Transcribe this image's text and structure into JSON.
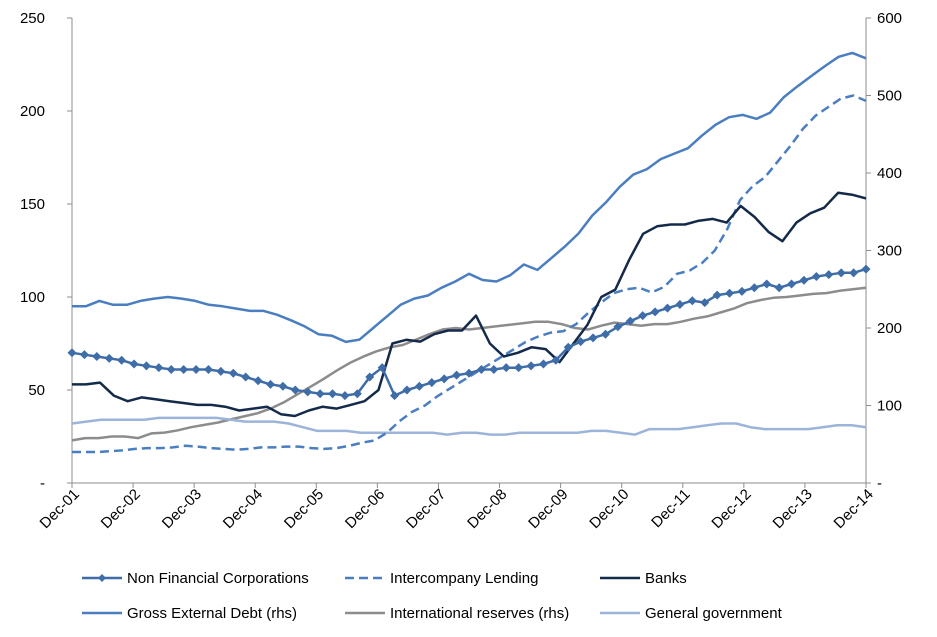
{
  "chart_data": {
    "type": "line",
    "x_labels": [
      "Dec-01",
      "Dec-02",
      "Dec-03",
      "Dec-04",
      "Dec-05",
      "Dec-06",
      "Dec-07",
      "Dec-08",
      "Dec-09",
      "Dec-10",
      "Dec-11",
      "Dec-12",
      "Dec-13",
      "Dec-14"
    ],
    "y_left": {
      "ylim": [
        0,
        250
      ],
      "ticks": [
        0,
        50,
        100,
        150,
        200,
        250
      ],
      "tick_labels": [
        "-",
        "50",
        "100",
        "150",
        "200",
        "250"
      ]
    },
    "y_right": {
      "ylim": [
        0,
        600
      ],
      "ticks": [
        0,
        100,
        200,
        300,
        400,
        500,
        600
      ],
      "tick_labels": [
        "-",
        "100",
        "200",
        "300",
        "400",
        "500",
        "600"
      ]
    },
    "grid": false,
    "legend_position": "bottom",
    "series": [
      {
        "name": "Non Financial Corporations",
        "axis": "left",
        "color": "#3f6da8",
        "style": "solid-diamond",
        "values": [
          70,
          69,
          68,
          67,
          66,
          64,
          63,
          62,
          61,
          61,
          61,
          61,
          60,
          59,
          57,
          55,
          53,
          52,
          50,
          49,
          48,
          48,
          47,
          48,
          57,
          62,
          47,
          50,
          52,
          54,
          56,
          58,
          59,
          61,
          61,
          62,
          62,
          63,
          64,
          66,
          73,
          76,
          78,
          80,
          84,
          87,
          90,
          92,
          94,
          96,
          98,
          97,
          101,
          102,
          103,
          105,
          107,
          105,
          107,
          109,
          111,
          112,
          113,
          113,
          115
        ]
      },
      {
        "name": "Intercompany Lending",
        "axis": "right",
        "color": "#4a7ec0",
        "style": "dashed",
        "values": [
          40,
          40,
          40,
          41,
          42,
          44,
          45,
          45,
          46,
          48,
          47,
          45,
          44,
          43,
          44,
          46,
          46,
          47,
          47,
          45,
          44,
          45,
          48,
          52,
          55,
          65,
          80,
          92,
          100,
          112,
          122,
          132,
          142,
          152,
          162,
          172,
          182,
          189,
          194,
          196,
          205,
          220,
          233,
          245,
          250,
          252,
          246,
          253,
          270,
          274,
          284,
          300,
          328,
          365,
          383,
          395,
          415,
          435,
          457,
          474,
          485,
          496,
          500,
          493
        ]
      },
      {
        "name": "Banks",
        "axis": "left",
        "color": "#142a4a",
        "style": "solid",
        "values": [
          53,
          53,
          54,
          47,
          44,
          46,
          45,
          44,
          43,
          42,
          42,
          41,
          39,
          40,
          41,
          37,
          36,
          39,
          41,
          40,
          42,
          44,
          50,
          75,
          77,
          76,
          80,
          82,
          82,
          90,
          75,
          68,
          70,
          73,
          72,
          65,
          75,
          85,
          100,
          104,
          120,
          134,
          138,
          139,
          139,
          141,
          142,
          140,
          149,
          143,
          135,
          130,
          140,
          145,
          148,
          156,
          155,
          153
        ]
      },
      {
        "name": "Gross External Debt (rhs)",
        "axis": "right",
        "color": "#4a7ec0",
        "style": "solid",
        "values": [
          228,
          228,
          235,
          230,
          230,
          235,
          238,
          240,
          238,
          235,
          230,
          228,
          225,
          222,
          222,
          217,
          210,
          202,
          192,
          190,
          182,
          185,
          200,
          215,
          230,
          238,
          242,
          252,
          260,
          270,
          262,
          260,
          268,
          282,
          275,
          290,
          305,
          322,
          345,
          362,
          382,
          398,
          405,
          418,
          425,
          432,
          448,
          462,
          472,
          475,
          470,
          478,
          498,
          512,
          525,
          538,
          550,
          555,
          548
        ]
      },
      {
        "name": "International reserves (rhs)",
        "axis": "right",
        "color": "#8c8c8c",
        "style": "solid",
        "values": [
          55,
          58,
          58,
          60,
          60,
          58,
          64,
          65,
          68,
          72,
          75,
          78,
          82,
          86,
          90,
          96,
          104,
          114,
          124,
          134,
          145,
          155,
          163,
          170,
          175,
          178,
          185,
          192,
          198,
          200,
          198,
          200,
          202,
          204,
          206,
          208,
          208,
          205,
          200,
          198,
          203,
          207,
          205,
          203,
          205,
          205,
          208,
          212,
          215,
          220,
          225,
          232,
          236,
          239,
          240,
          242,
          244,
          245,
          248,
          250,
          252
        ]
      },
      {
        "name": "General government",
        "axis": "left",
        "color": "#9db4da",
        "style": "solid",
        "values": [
          32,
          33,
          34,
          34,
          34,
          34,
          35,
          35,
          35,
          35,
          35,
          34,
          33,
          33,
          33,
          32,
          30,
          28,
          28,
          28,
          27,
          27,
          27,
          27,
          27,
          27,
          26,
          27,
          27,
          26,
          26,
          27,
          27,
          27,
          27,
          27,
          28,
          28,
          27,
          26,
          29,
          29,
          29,
          30,
          31,
          32,
          32,
          30,
          29,
          29,
          29,
          29,
          30,
          31,
          31,
          30
        ]
      }
    ]
  }
}
